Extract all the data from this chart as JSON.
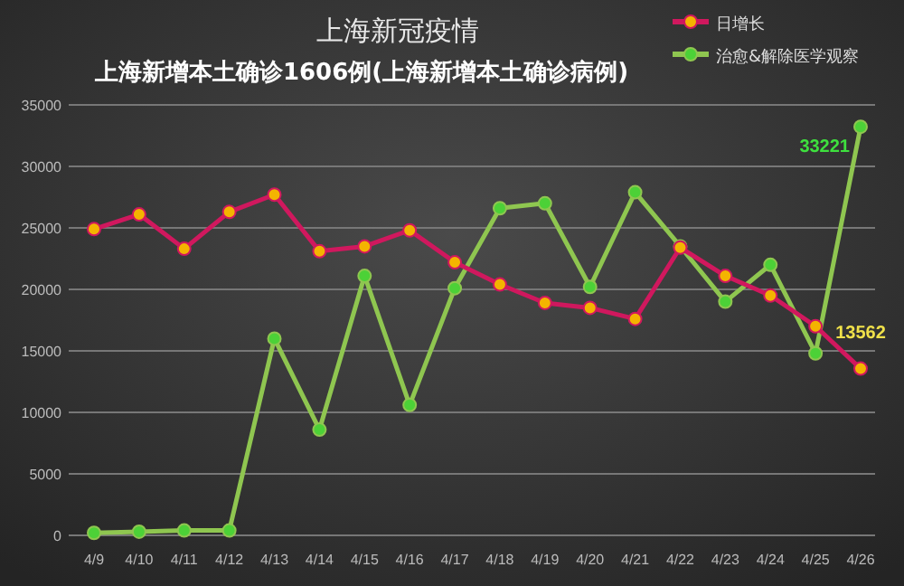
{
  "chart_data": {
    "type": "line",
    "title": "上海新冠疫情",
    "subtitle": "上海新增本土确诊1606例(上海新增本土确诊病例)",
    "categories": [
      "4/9",
      "4/10",
      "4/11",
      "4/12",
      "4/13",
      "4/14",
      "4/15",
      "4/16",
      "4/17",
      "4/18",
      "4/19",
      "4/20",
      "4/21",
      "4/22",
      "4/23",
      "4/24",
      "4/25",
      "4/26"
    ],
    "series": [
      {
        "name": "日增长",
        "color": "#d0185e",
        "values": [
          24900,
          26100,
          23300,
          26300,
          27700,
          23100,
          23500,
          24800,
          22200,
          20400,
          18900,
          18500,
          17600,
          23400,
          21100,
          19500,
          17000,
          13562
        ],
        "value_labels": [
          null,
          null,
          null,
          null,
          null,
          null,
          null,
          null,
          null,
          null,
          null,
          null,
          null,
          null,
          null,
          null,
          null,
          "13562"
        ]
      },
      {
        "name": "治愈&解除医学观察",
        "color": "#8fc650",
        "values": [
          200,
          300,
          400,
          400,
          16000,
          8600,
          21100,
          10600,
          20100,
          26600,
          27000,
          20200,
          27900,
          23500,
          19000,
          22000,
          14800,
          33221
        ],
        "value_labels": [
          null,
          null,
          null,
          null,
          null,
          null,
          null,
          null,
          null,
          null,
          null,
          null,
          null,
          null,
          null,
          null,
          null,
          "33221"
        ]
      }
    ],
    "ylim": [
      0,
      35000
    ],
    "yticks": [
      0,
      5000,
      10000,
      15000,
      20000,
      25000,
      30000,
      35000
    ],
    "grid": "y",
    "legend": "top right",
    "marker": "circle"
  }
}
